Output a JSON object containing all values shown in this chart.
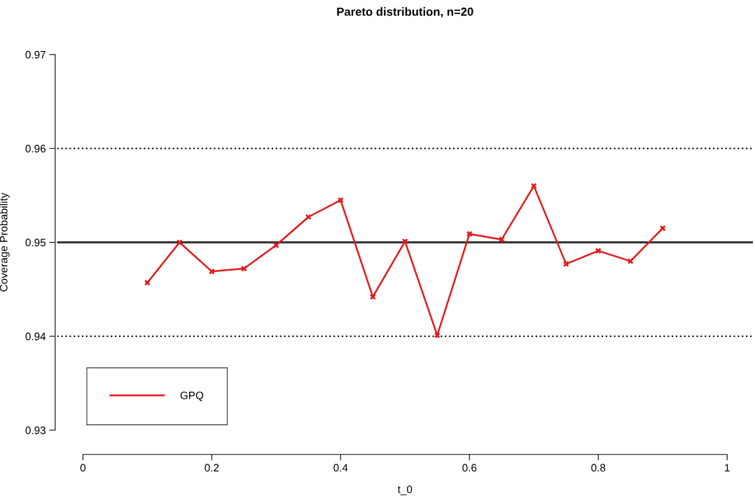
{
  "chart_data": {
    "type": "line",
    "title": "Pareto distribution, n=20",
    "xlabel": "t_0",
    "ylabel": "Coverage Probability",
    "x": [
      0.1,
      0.15,
      0.2,
      0.25,
      0.3,
      0.35,
      0.4,
      0.45,
      0.5,
      0.55,
      0.6,
      0.65,
      0.7,
      0.75,
      0.8,
      0.85,
      0.9
    ],
    "series": [
      {
        "name": "GPQ",
        "color": "#e41a1c",
        "values": [
          0.9457,
          0.95,
          0.9469,
          0.9472,
          0.9497,
          0.9527,
          0.9545,
          0.9442,
          0.9501,
          0.9401,
          0.9509,
          0.9503,
          0.956,
          0.9477,
          0.9491,
          0.948,
          0.9515
        ]
      }
    ],
    "xlim": [
      -0.04,
      1.04
    ],
    "ylim": [
      0.93,
      0.97
    ],
    "xticks": [
      0,
      0.2,
      0.4,
      0.6,
      0.8,
      1
    ],
    "yticks": [
      0.93,
      0.94,
      0.95,
      0.96,
      0.97
    ],
    "ref_lines": [
      {
        "axis": "y",
        "value": 0.96,
        "line_style": "dotted",
        "color": "#000000"
      },
      {
        "axis": "y",
        "value": 0.95,
        "line_style": "solid",
        "color": "#333333"
      },
      {
        "axis": "y",
        "value": 0.94,
        "line_style": "dotted",
        "color": "#000000"
      }
    ],
    "marker": "cross",
    "line_style": "solid",
    "legend": "bottom left",
    "grid": false
  }
}
